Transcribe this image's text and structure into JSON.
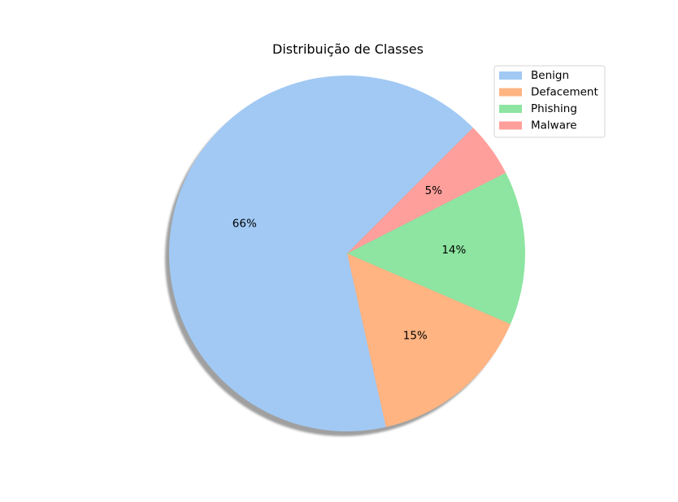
{
  "chart_data": {
    "type": "pie",
    "title": "Distribuição de Classes",
    "categories": [
      "Benign",
      "Defacement",
      "Phishing",
      "Malware"
    ],
    "values": [
      66,
      15,
      14,
      5
    ],
    "value_labels": [
      "66%",
      "15%",
      "14%",
      "5%"
    ],
    "colors": [
      "#a1c9f4",
      "#ffb482",
      "#8de5a1",
      "#ff9f9b"
    ],
    "start_angle_deg": 45,
    "direction": "counterclockwise",
    "shadow": true,
    "legend_position": "top-right"
  }
}
